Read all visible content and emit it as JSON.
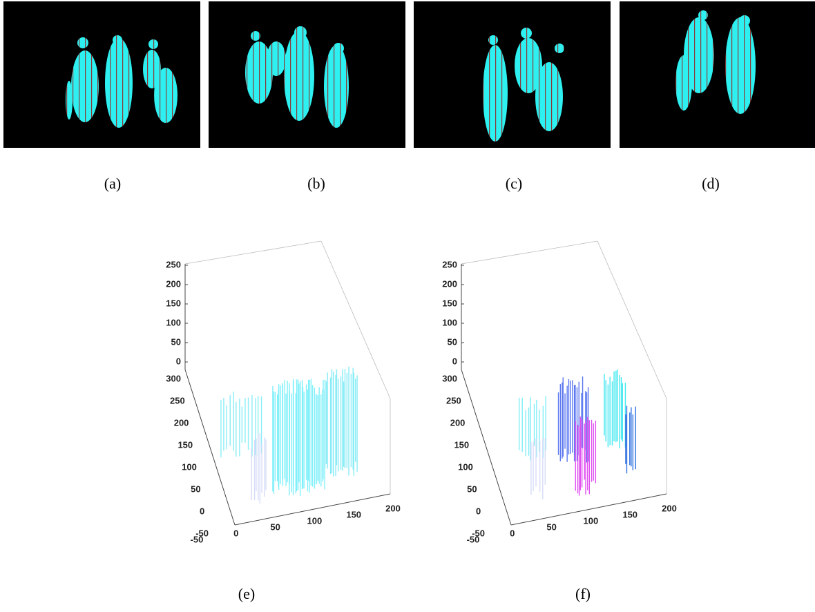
{
  "figure": {
    "panels": [
      {
        "caption": "(a)"
      },
      {
        "caption": "(b)"
      },
      {
        "caption": "(c)"
      },
      {
        "caption": "(d)"
      }
    ],
    "plots": [
      {
        "caption": "(e)",
        "z_ticks": [
          0,
          50,
          100,
          150,
          200,
          250
        ],
        "y_ticks": [
          -50,
          0,
          50,
          100,
          150,
          200,
          250,
          300
        ],
        "x_ticks": [
          -50,
          0,
          50,
          100,
          150,
          200
        ]
      },
      {
        "caption": "(f)",
        "z_ticks": [
          0,
          50,
          100,
          150,
          200,
          250
        ],
        "y_ticks": [
          -50,
          0,
          50,
          100,
          150,
          200,
          250,
          300
        ],
        "x_ticks": [
          -50,
          0,
          50,
          100,
          150,
          200
        ]
      }
    ]
  }
}
